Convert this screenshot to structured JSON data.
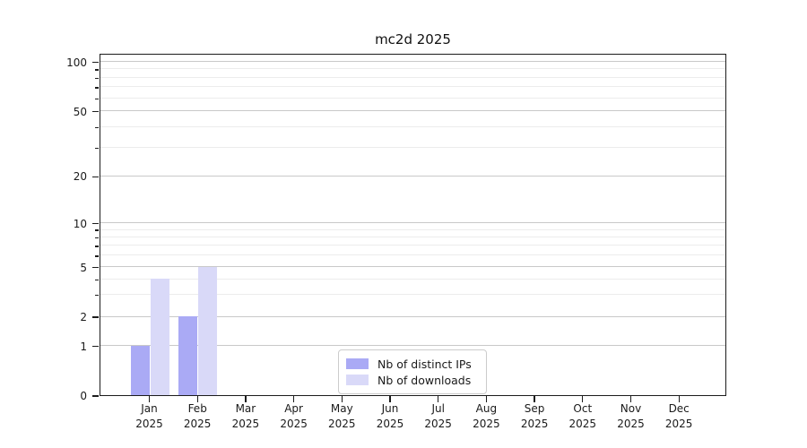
{
  "title": "mc2d 2025",
  "legend": {
    "entries": [
      "Nb of distinct IPs",
      "Nb of downloads"
    ]
  },
  "chart_data": {
    "type": "bar",
    "title": "mc2d 2025",
    "categories": [
      "Jan 2025",
      "Feb 2025",
      "Mar 2025",
      "Apr 2025",
      "May 2025",
      "Jun 2025",
      "Jul 2025",
      "Aug 2025",
      "Sep 2025",
      "Oct 2025",
      "Nov 2025",
      "Dec 2025"
    ],
    "series": [
      {
        "name": "Nb of distinct IPs",
        "color": "#aaaaf5",
        "values": [
          1,
          2,
          0,
          0,
          0,
          0,
          0,
          0,
          0,
          0,
          0,
          0
        ]
      },
      {
        "name": "Nb of downloads",
        "color": "#d9d9f8",
        "values": [
          4,
          5,
          0,
          0,
          0,
          0,
          0,
          0,
          0,
          0,
          0,
          0
        ]
      }
    ],
    "xlabel": "",
    "ylabel": "",
    "yscale": "log",
    "y_ticks": [
      0,
      1,
      2,
      5,
      10,
      20,
      50,
      100
    ],
    "y_minor_ticks": [
      3,
      4,
      6,
      7,
      8,
      9,
      30,
      40,
      60,
      70,
      80,
      90
    ],
    "ylim": [
      0,
      120
    ],
    "grid": "horizontal",
    "legend_position": "bottom-center"
  }
}
